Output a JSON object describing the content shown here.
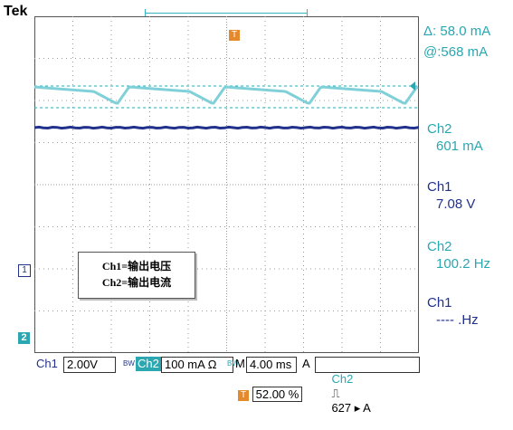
{
  "brand": "Tek",
  "colors": {
    "ch1": "#22328c",
    "ch2": "#2aa7b1",
    "trigger": "#e58a2c",
    "grid": "#9a9a9a"
  },
  "cursor_readout": {
    "delta": "Δ: 58.0 mA",
    "at": "@:568 mA"
  },
  "measurements": [
    {
      "source": "Ch2",
      "value": "601 mA",
      "color": "ch2"
    },
    {
      "source": "Ch1",
      "value": "7.08 V",
      "color": "ch1"
    },
    {
      "source": "Ch2",
      "value": "100.2 Hz",
      "color": "ch2"
    },
    {
      "source": "Ch1",
      "value": "---- .Hz",
      "color": "ch1"
    }
  ],
  "legend": {
    "line1": "Ch1=输出电压",
    "line2": "Ch2=输出电流"
  },
  "markers": {
    "ch1": "1",
    "ch2": "2",
    "trigger_icon": "T"
  },
  "bottom_bar": {
    "ch1_label": "Ch1",
    "ch1_scale": "2.00V",
    "ch1_bw": "BW",
    "ch2_label": "Ch2",
    "ch2_scale": "100 mA Ω",
    "ch2_bw": "BW",
    "timebase_label": "M",
    "timebase": "4.00 ms",
    "acq": "A",
    "trig_source": "Ch2",
    "trig_slope": "⎍",
    "trig_level": "627 ▸ A"
  },
  "trigger_position": "52.00 %",
  "chart_data": {
    "type": "line",
    "series": [
      {
        "name": "Ch1",
        "values": "flat",
        "level": 7.08
      },
      {
        "name": "Ch2",
        "values": "ripple",
        "mean": 601,
        "frequency": 100.2
      }
    ]
  }
}
